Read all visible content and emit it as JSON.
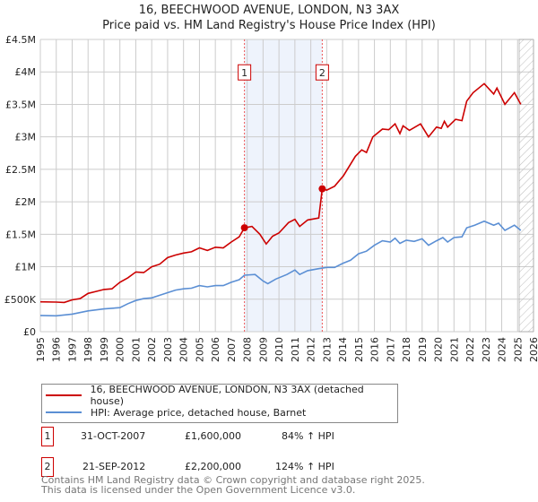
{
  "chart_data": {
    "type": "line",
    "title": "16, BEECHWOOD AVENUE, LONDON, N3 3AX",
    "subtitle": "Price paid vs. HM Land Registry's House Price Index (HPI)",
    "xlabel": "",
    "ylabel": "",
    "xlim": [
      1995,
      2026
    ],
    "ylim": [
      0,
      4500000
    ],
    "x_ticks": [
      1995,
      1996,
      1997,
      1998,
      1999,
      2000,
      2001,
      2002,
      2003,
      2004,
      2005,
      2006,
      2007,
      2008,
      2009,
      2010,
      2011,
      2012,
      2013,
      2014,
      2015,
      2016,
      2017,
      2018,
      2019,
      2020,
      2021,
      2022,
      2023,
      2024,
      2025,
      2026
    ],
    "y_ticks": [
      0,
      500000,
      1000000,
      1500000,
      2000000,
      2500000,
      3000000,
      3500000,
      4000000,
      4500000
    ],
    "y_tick_labels": [
      "£0",
      "£500K",
      "£1M",
      "£1.5M",
      "£2M",
      "£2.5M",
      "£3M",
      "£3.5M",
      "£4M",
      "£4.5M"
    ],
    "grid": true,
    "series": [
      {
        "name": "16, BEECHWOOD AVENUE, LONDON, N3 3AX (detached house)",
        "color": "#cc0000",
        "x": [
          1995,
          1996,
          1996.5,
          1997,
          1997.5,
          1998,
          1998.5,
          1999,
          1999.5,
          2000,
          2000.5,
          2001,
          2001.5,
          2002,
          2002.5,
          2003,
          2003.5,
          2004,
          2004.5,
          2005,
          2005.5,
          2006,
          2006.5,
          2007,
          2007.5,
          2007.83,
          2008.3,
          2008.8,
          2009.2,
          2009.6,
          2010,
          2010.6,
          2011,
          2011.3,
          2011.8,
          2012.5,
          2012.72,
          2013,
          2013.5,
          2014.05,
          2014.8,
          2015.2,
          2015.5,
          2015.9,
          2016.5,
          2016.9,
          2017.3,
          2017.6,
          2017.8,
          2018.2,
          2018.9,
          2019.4,
          2019.9,
          2020.2,
          2020.4,
          2020.6,
          2021.1,
          2021.5,
          2021.8,
          2022.2,
          2022.9,
          2023.5,
          2023.7,
          2024.2,
          2024.8,
          2025.2
        ],
        "y": [
          460000,
          455000,
          450000,
          490000,
          510000,
          590000,
          620000,
          650000,
          660000,
          760000,
          830000,
          920000,
          910000,
          1000000,
          1040000,
          1140000,
          1180000,
          1210000,
          1230000,
          1290000,
          1250000,
          1300000,
          1290000,
          1380000,
          1460000,
          1600000,
          1620000,
          1500000,
          1350000,
          1470000,
          1520000,
          1680000,
          1730000,
          1620000,
          1720000,
          1750000,
          2200000,
          2180000,
          2240000,
          2400000,
          2700000,
          2800000,
          2760000,
          3000000,
          3120000,
          3110000,
          3200000,
          3050000,
          3170000,
          3100000,
          3200000,
          3000000,
          3150000,
          3130000,
          3240000,
          3150000,
          3270000,
          3250000,
          3550000,
          3680000,
          3820000,
          3660000,
          3750000,
          3500000,
          3680000,
          3500000
        ]
      },
      {
        "name": "HPI: Average price, detached house, Barnet",
        "color": "#5b8fd4",
        "x": [
          1995,
          1996,
          1997,
          1998,
          1999,
          2000,
          2000.5,
          2001,
          2001.5,
          2002,
          2002.5,
          2003,
          2003.5,
          2004,
          2004.5,
          2005,
          2005.5,
          2006,
          2006.5,
          2007,
          2007.5,
          2007.83,
          2008.5,
          2009,
          2009.3,
          2009.8,
          2010.5,
          2011,
          2011.3,
          2011.8,
          2012.5,
          2013,
          2013.5,
          2014,
          2014.5,
          2015,
          2015.5,
          2016,
          2016.5,
          2017,
          2017.3,
          2017.6,
          2018,
          2018.5,
          2019,
          2019.4,
          2019.9,
          2020.3,
          2020.6,
          2021,
          2021.5,
          2021.8,
          2022.3,
          2022.9,
          2023.5,
          2023.8,
          2024.2,
          2024.8,
          2025.2
        ],
        "y": [
          250000,
          245000,
          270000,
          320000,
          350000,
          370000,
          430000,
          480000,
          510000,
          520000,
          560000,
          600000,
          640000,
          660000,
          670000,
          710000,
          690000,
          710000,
          710000,
          760000,
          800000,
          870000,
          880000,
          780000,
          740000,
          810000,
          880000,
          950000,
          880000,
          940000,
          970000,
          990000,
          990000,
          1050000,
          1100000,
          1200000,
          1240000,
          1330000,
          1400000,
          1380000,
          1440000,
          1360000,
          1410000,
          1390000,
          1430000,
          1330000,
          1400000,
          1450000,
          1380000,
          1450000,
          1460000,
          1600000,
          1640000,
          1700000,
          1640000,
          1670000,
          1560000,
          1640000,
          1560000
        ]
      }
    ],
    "sales": [
      {
        "label": "1",
        "x": 2007.83,
        "y": 1600000,
        "date": "31-OCT-2007",
        "price": "£1,600,000",
        "hpi": "84% ↑ HPI"
      },
      {
        "label": "2",
        "x": 2012.72,
        "y": 2200000,
        "date": "21-SEP-2012",
        "price": "£2,200,000",
        "hpi": "124% ↑ HPI"
      }
    ],
    "forecast_hatch_from": 2025.1,
    "legend": [
      "16, BEECHWOOD AVENUE, LONDON, N3 3AX (detached house)",
      "HPI: Average price, detached house, Barnet"
    ],
    "legend_placement": "below"
  },
  "footer": {
    "line1": "Contains HM Land Registry data © Crown copyright and database right 2025.",
    "line2": "This data is licensed under the Open Government Licence v3.0."
  }
}
